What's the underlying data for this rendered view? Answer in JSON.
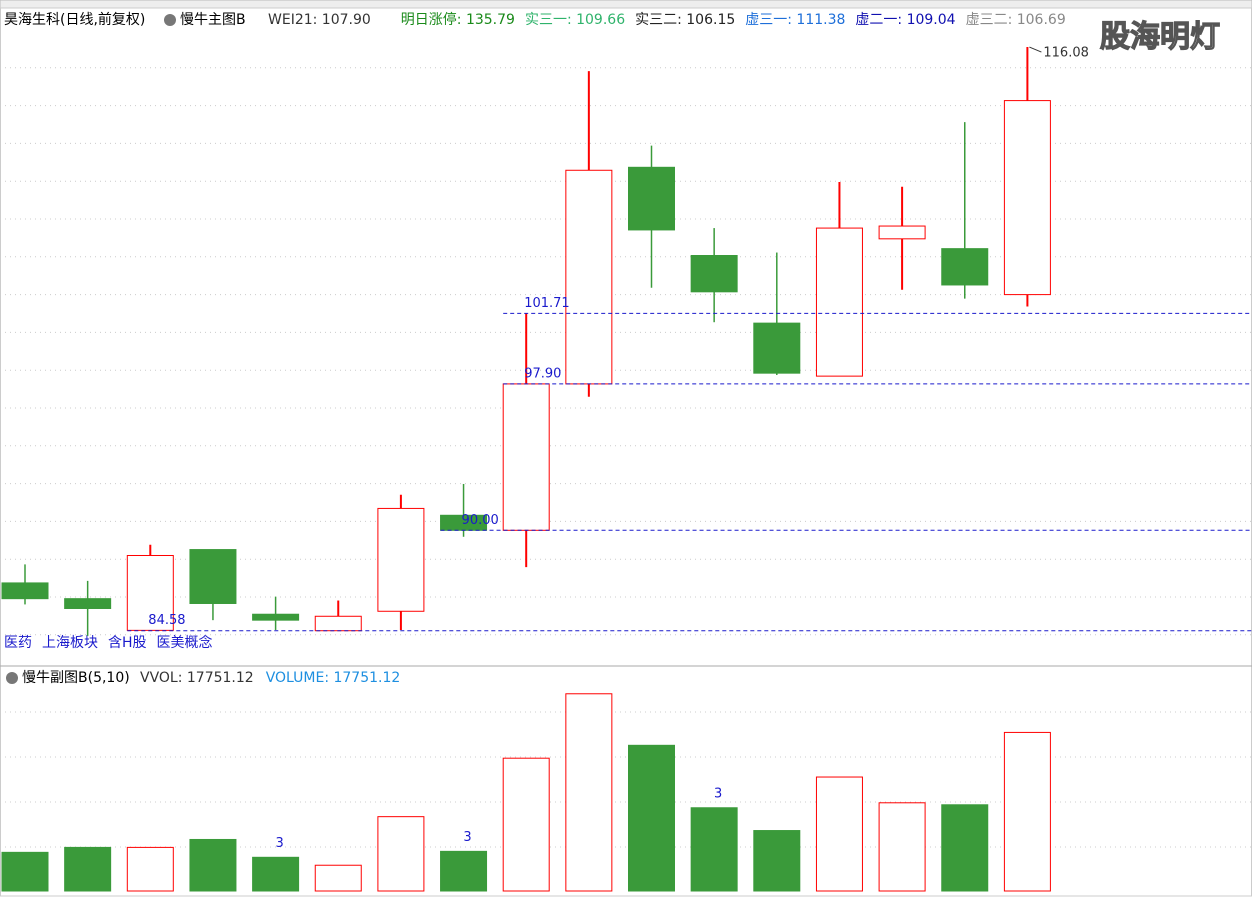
{
  "header": {
    "title": "昊海生科(日线,前复权)",
    "indicator": "慢牛主图B",
    "items": [
      {
        "text": "WEI21: 107.90",
        "color": "#333333"
      },
      {
        "text": "明日涨停: 135.79",
        "color": "#1a8a1a"
      },
      {
        "text": "实三一: 109.66",
        "color": "#2fb36b"
      },
      {
        "text": "实三二: 106.15",
        "color": "#222222"
      },
      {
        "text": "虚三一: 111.38",
        "color": "#1e6fd9"
      },
      {
        "text": "虚二一: 109.04",
        "color": "#1010b0"
      },
      {
        "text": "虚三二: 106.69",
        "color": "#888888"
      }
    ]
  },
  "watermark": "股海明灯",
  "tags": [
    "医药",
    "上海板块",
    "含H股",
    "医美概念"
  ],
  "chart_data": [
    {
      "type": "candlestick",
      "open": [
        87.16,
        86.31,
        84.6,
        88.96,
        85.47,
        84.58,
        85.63,
        90.81,
        90.0,
        97.9,
        109.59,
        104.83,
        101.18,
        98.32,
        105.73,
        105.2,
        102.72
      ],
      "high": [
        88.16,
        87.27,
        89.22,
        88.96,
        86.42,
        86.21,
        91.92,
        92.5,
        101.71,
        114.78,
        110.76,
        106.31,
        104.99,
        108.8,
        108.54,
        112.03,
        116.08
      ],
      "low": [
        86.0,
        84.3,
        84.58,
        85.15,
        84.62,
        84.58,
        84.62,
        89.65,
        88.01,
        97.21,
        103.09,
        101.23,
        98.38,
        98.32,
        102.98,
        102.5,
        102.08
      ],
      "close": [
        86.31,
        85.78,
        88.64,
        86.05,
        85.15,
        85.36,
        91.18,
        90.0,
        97.9,
        109.43,
        106.21,
        102.87,
        98.48,
        106.31,
        106.42,
        103.24,
        113.19
      ],
      "up_color": "#ff0000",
      "down_color": "#3a9a3a",
      "ylim": [
        83,
        117
      ],
      "grid": true,
      "levels": [
        101.71,
        {
          "value": 97.9,
          "label": "97.90"
        },
        {
          "value": 90,
          "label": "90.00"
        },
        84.58
      ],
      "level_color": "#1a1acc",
      "max_label": 116.08
    },
    {
      "type": "bar",
      "title": "慢牛副图B(5,10)",
      "items": [
        {
          "text": "VVOL: 17751.12",
          "color": "#333333"
        },
        {
          "text": "VOLUME: 17751.12",
          "color": "#1e8fe0"
        }
      ],
      "values": [
        4327,
        4881,
        4881,
        5769,
        3772,
        2884,
        8321,
        4438,
        14866,
        22077,
        16308,
        9319,
        6767,
        12758,
        9874,
        9652,
        17751.12
      ],
      "signals": [
        null,
        null,
        null,
        null,
        "3",
        null,
        null,
        "3",
        null,
        null,
        null,
        "3",
        null,
        null,
        null,
        null,
        null
      ],
      "ylim": [
        0,
        22500
      ],
      "grid": true
    }
  ]
}
